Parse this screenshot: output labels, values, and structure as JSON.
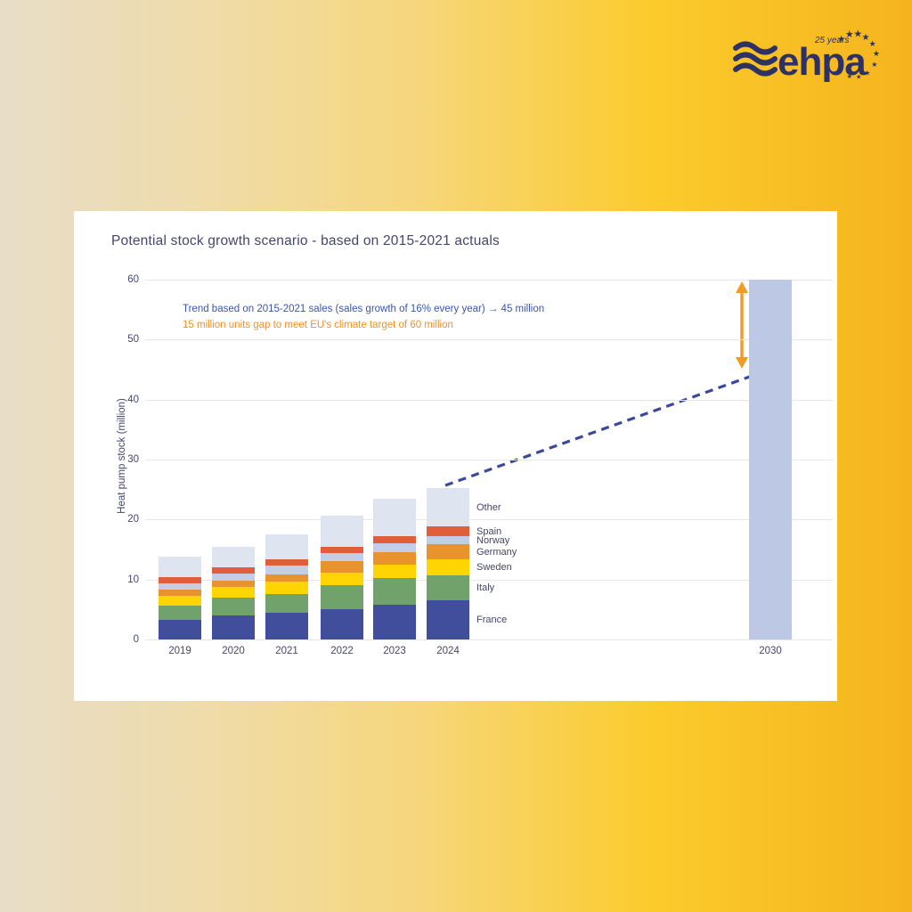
{
  "logo": {
    "brand": "ehpa",
    "anniversary": "25 years",
    "color": "#2e3166"
  },
  "theme": {
    "background_left": "#e8ddc8",
    "background_right": "#f5b41e",
    "card_background": "#ffffff",
    "text_color": "#45456d"
  },
  "chart_data": {
    "type": "bar",
    "subtype": "stacked-bar with target bar and trend line",
    "title": "Potential stock growth scenario - based on 2015-2021 actuals",
    "xlabel": "",
    "ylabel": "Heat pump stock (million)",
    "ylim": [
      0,
      60
    ],
    "yticks": [
      0,
      10,
      20,
      30,
      40,
      50,
      60
    ],
    "grid": "horizontal",
    "legend_position": "right-of-last-bar",
    "categories": [
      "2019",
      "2020",
      "2021",
      "2022",
      "2023",
      "2024"
    ],
    "series": [
      {
        "name": "France",
        "color": "#414e9b",
        "values": [
          3.2,
          4.0,
          4.5,
          5.1,
          5.8,
          6.6
        ]
      },
      {
        "name": "Italy",
        "color": "#72a26c",
        "values": [
          2.5,
          3.0,
          3.1,
          3.9,
          4.4,
          4.1
        ]
      },
      {
        "name": "Sweden",
        "color": "#fed402",
        "values": [
          1.6,
          1.7,
          2.1,
          2.1,
          2.3,
          2.6
        ]
      },
      {
        "name": "Germany",
        "color": "#e9932f",
        "values": [
          1.0,
          1.1,
          1.2,
          1.9,
          2.1,
          2.6
        ]
      },
      {
        "name": "Norway",
        "color": "#c3cde3",
        "values": [
          1.1,
          1.2,
          1.4,
          1.4,
          1.4,
          1.3
        ]
      },
      {
        "name": "Spain",
        "color": "#de5f3a",
        "values": [
          1.0,
          1.0,
          1.1,
          1.1,
          1.3,
          1.6
        ]
      },
      {
        "name": "Other",
        "color": "#dfe4f1",
        "values": [
          3.4,
          3.5,
          4.2,
          5.2,
          6.1,
          6.5
        ]
      }
    ],
    "totals": [
      13.8,
      15.5,
      17.6,
      20.7,
      23.4,
      25.3
    ],
    "target_bar": {
      "category": "2030",
      "value": 60,
      "color": "#bdc8e4"
    },
    "trend_line": {
      "style": "dashed",
      "color": "#3a499e",
      "from_category": "2024",
      "from_value": 25.3,
      "to_category": "2030",
      "to_value": 45
    },
    "gap_arrow": {
      "color": "#f29a26",
      "from_value": 60,
      "to_value": 45,
      "direction": "double-headed vertical"
    },
    "annotations": [
      {
        "text": "Trend based on 2015-2021 sales (sales growth of 16% every year) → 45 million",
        "color": "#3a55b0"
      },
      {
        "text": "15 million units gap to meet EU's climate target of 60 million",
        "color": "#f39122"
      }
    ]
  }
}
